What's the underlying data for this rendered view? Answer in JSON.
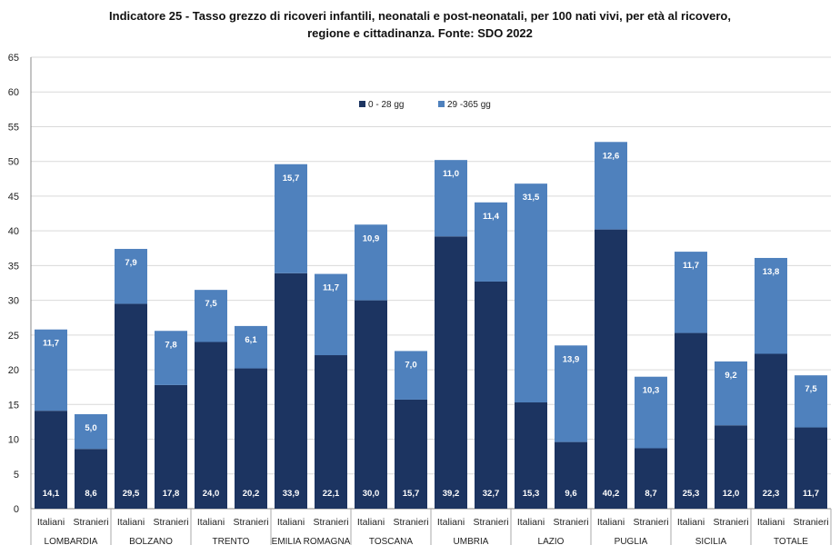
{
  "chart_data": {
    "type": "bar",
    "stacked": true,
    "title_lines": [
      "Indicatore 25 - Tasso grezzo di ricoveri infantili, neonatali e post-neonatali, per 100 nati vivi, per età al ricovero,",
      "regione e cittadinanza. Fonte: SDO 2022"
    ],
    "groups": [
      "LOMBARDIA",
      "BOLZANO",
      "TRENTO",
      "EMILIA ROMAGNA",
      "TOSCANA",
      "UMBRIA",
      "LAZIO",
      "PUGLIA",
      "SICILIA",
      "TOTALE"
    ],
    "subcategories": [
      "Italiani",
      "Stranieri"
    ],
    "series": [
      {
        "name": "0 - 28 gg",
        "color": "#1c3461",
        "values": [
          14.1,
          8.6,
          29.5,
          17.8,
          24.0,
          20.2,
          33.9,
          22.1,
          30.0,
          15.7,
          39.2,
          32.7,
          15.3,
          9.6,
          40.2,
          8.7,
          25.3,
          12.0,
          22.3,
          11.7
        ],
        "labels": [
          "14,1",
          "8,6",
          "29,5",
          "17,8",
          "24,0",
          "20,2",
          "33,9",
          "22,1",
          "30,0",
          "15,7",
          "39,2",
          "32,7",
          "15,3",
          "9,6",
          "40,2",
          "8,7",
          "25,3",
          "12,0",
          "22,3",
          "11,7"
        ]
      },
      {
        "name": "29 -365 gg",
        "color": "#4f81bd",
        "values": [
          11.7,
          5.0,
          7.9,
          7.8,
          7.5,
          6.1,
          15.7,
          11.7,
          10.9,
          7.0,
          11.0,
          11.4,
          31.5,
          13.9,
          12.6,
          10.3,
          11.7,
          9.2,
          13.8,
          7.5
        ],
        "labels": [
          "11,7",
          "5,0",
          "7,9",
          "7,8",
          "7,5",
          "6,1",
          "15,7",
          "11,7",
          "10,9",
          "7,0",
          "11,0",
          "11,4",
          "31,5",
          "13,9",
          "12,6",
          "10,3",
          "11,7",
          "9,2",
          "13,8",
          "7,5"
        ]
      }
    ],
    "ylim": [
      0,
      65
    ],
    "yticks": [
      0,
      5,
      10,
      15,
      20,
      25,
      30,
      35,
      40,
      45,
      50,
      55,
      60,
      65
    ],
    "grid": true,
    "legend": "top-center"
  }
}
